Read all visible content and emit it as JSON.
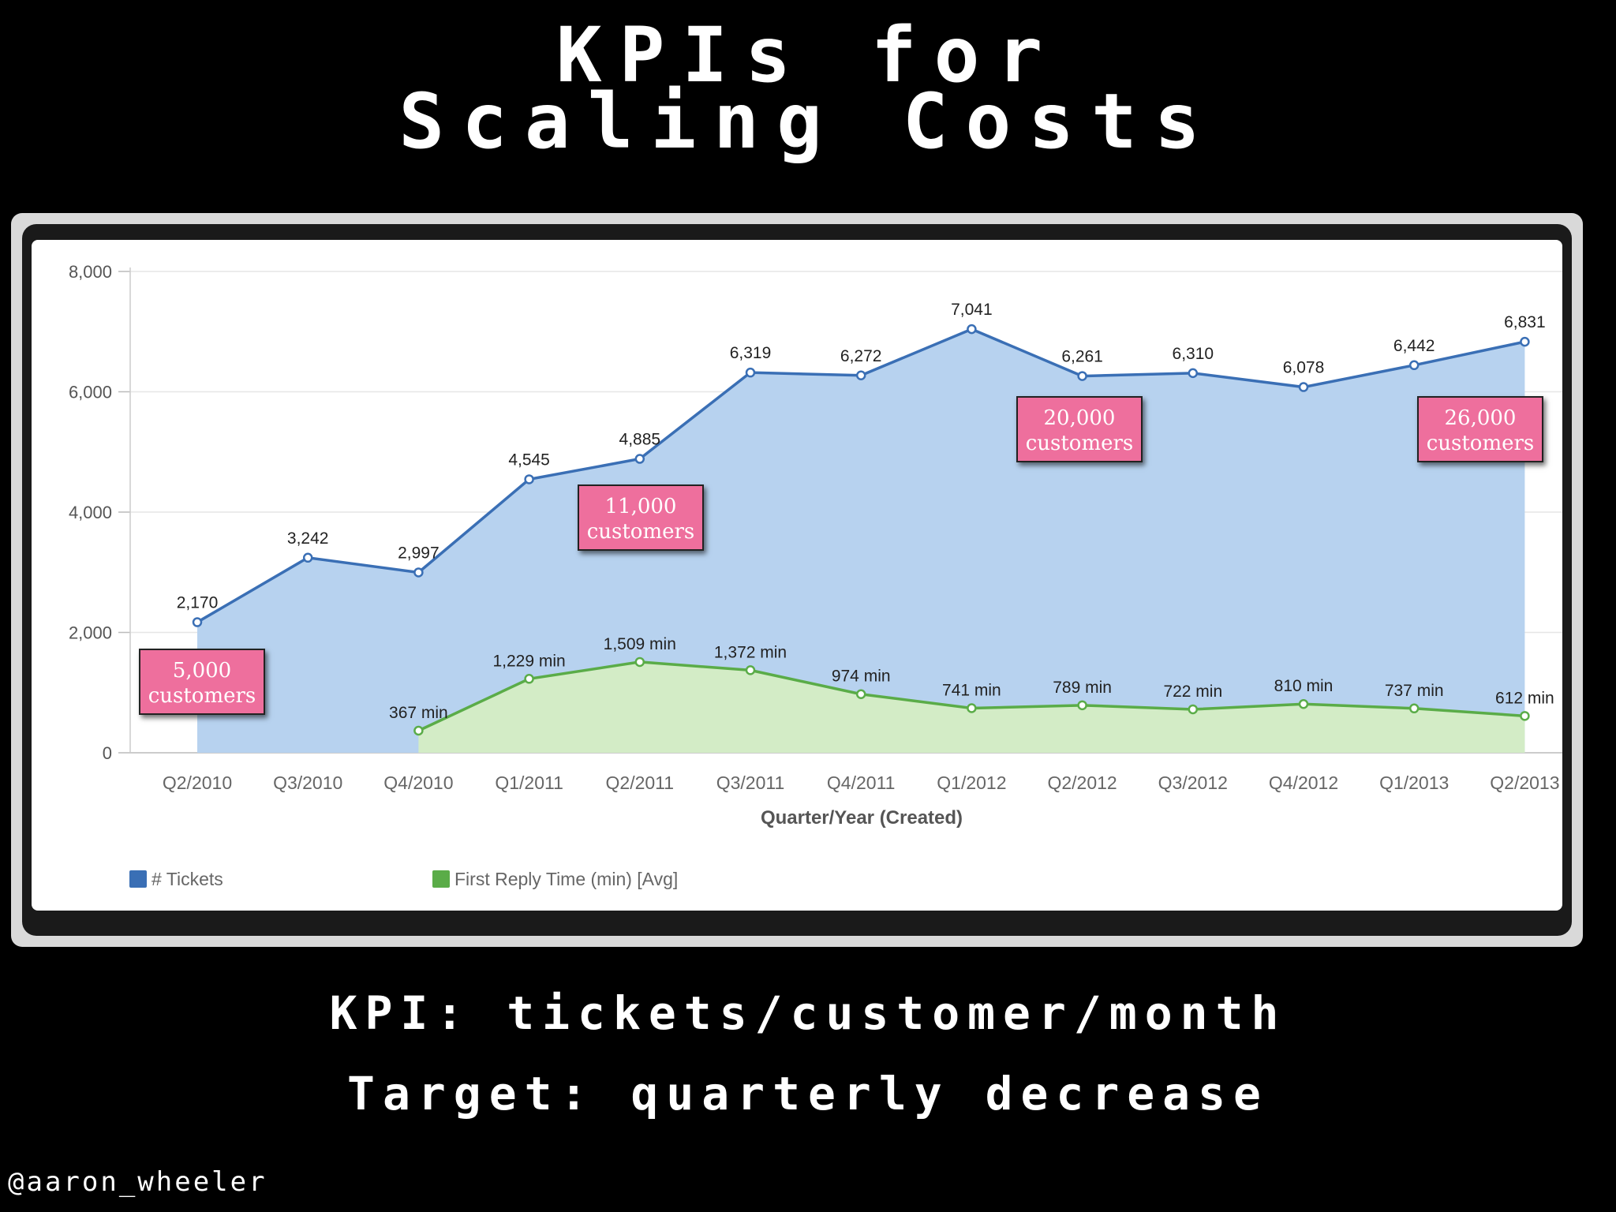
{
  "slide": {
    "title_line1": "KPIs for",
    "title_line2": "Scaling Costs",
    "kpi_text": "KPI: tickets/customer/month",
    "target_text": "Target: quarterly decrease",
    "handle": "@aaron_wheeler"
  },
  "callouts": [
    {
      "value": "5,000",
      "label": "customers"
    },
    {
      "value": "11,000",
      "label": "customers"
    },
    {
      "value": "20,000",
      "label": "customers"
    },
    {
      "value": "26,000",
      "label": "customers"
    }
  ],
  "colors": {
    "tickets_line": "#3a6fb5",
    "tickets_fill": "#b7d2ef",
    "reply_line": "#5aac48",
    "reply_fill": "#d3ecc6",
    "callout": "#ee6f9d"
  },
  "chart_data": {
    "type": "area",
    "title": "",
    "xlabel": "Quarter/Year (Created)",
    "ylabel": "",
    "ylim": [
      0,
      8000
    ],
    "yticks": [
      "0",
      "2,000",
      "4,000",
      "6,000",
      "8,000"
    ],
    "grid": true,
    "legend_position": "bottom-left",
    "categories": [
      "Q2/2010",
      "Q3/2010",
      "Q4/2010",
      "Q1/2011",
      "Q2/2011",
      "Q3/2011",
      "Q4/2011",
      "Q1/2012",
      "Q2/2012",
      "Q3/2012",
      "Q4/2012",
      "Q1/2013",
      "Q2/2013"
    ],
    "series": [
      {
        "name": "# Tickets",
        "values": [
          2170,
          3242,
          2997,
          4545,
          4885,
          6319,
          6272,
          7041,
          6261,
          6310,
          6078,
          6442,
          6831
        ],
        "labels": [
          "2,170",
          "3,242",
          "2,997",
          "4,545",
          "4,885",
          "6,319",
          "6,272",
          "7,041",
          "6,261",
          "6,310",
          "6,078",
          "6,442",
          "6,831"
        ]
      },
      {
        "name": "First Reply Time (min) [Avg]",
        "values": [
          null,
          null,
          367,
          1229,
          1509,
          1372,
          974,
          741,
          789,
          722,
          810,
          737,
          612
        ],
        "labels": [
          null,
          null,
          "367 min",
          "1,229 min",
          "1,509 min",
          "1,372 min",
          "974 min",
          "741 min",
          "789 min",
          "722 min",
          "810 min",
          "737 min",
          "612 min"
        ]
      }
    ]
  }
}
